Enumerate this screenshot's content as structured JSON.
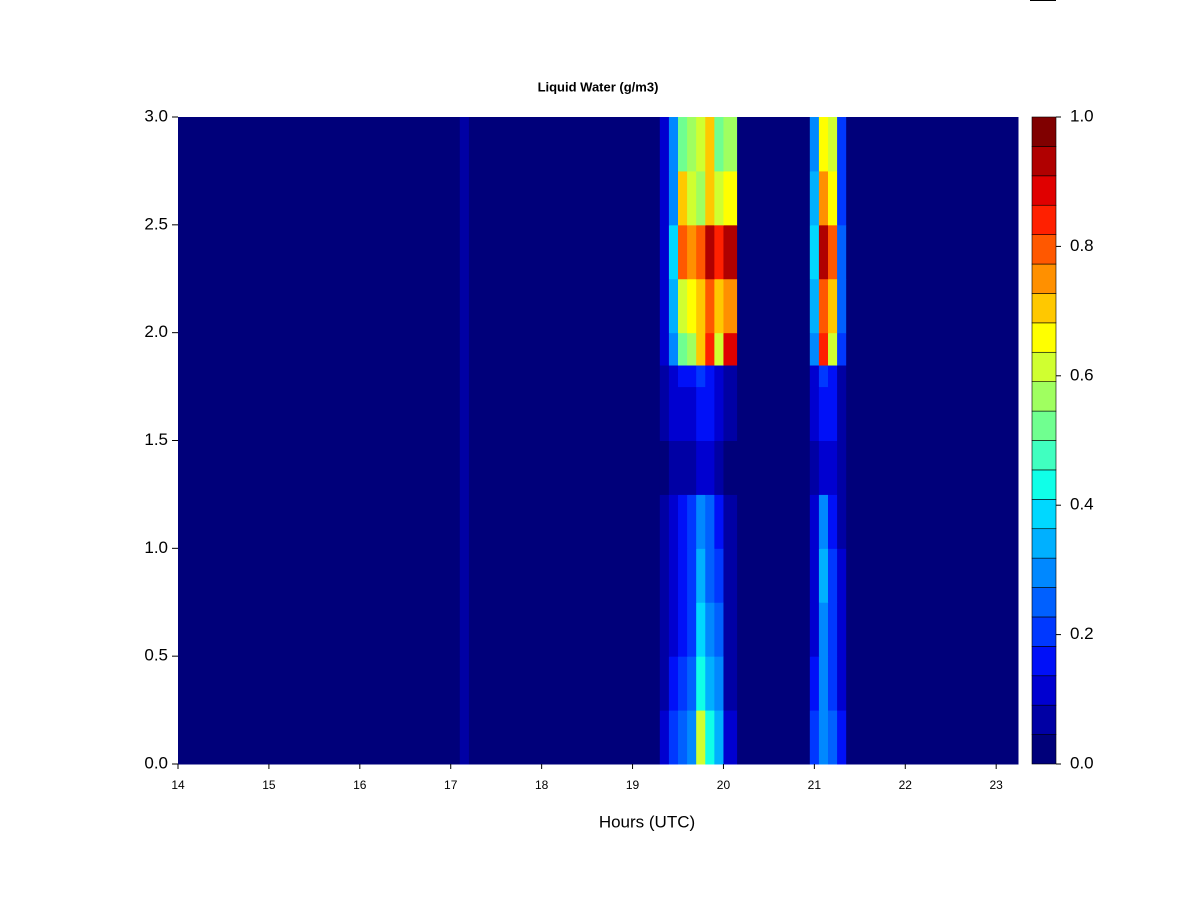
{
  "chart_data": {
    "type": "heatmap",
    "title": "Liquid Water (g/m3)",
    "x_label": "Hours (UTC)",
    "xlim": [
      14,
      23.24
    ],
    "ylim": [
      0,
      3
    ],
    "xticks": [
      14,
      15,
      16,
      17,
      18,
      19,
      20,
      21,
      22,
      23
    ],
    "yticks": [
      {
        "value": 0,
        "label": "0.0"
      },
      {
        "value": 0.5,
        "label": "0.5"
      },
      {
        "value": 1,
        "label": "1.0"
      },
      {
        "value": 1.5,
        "label": "1.5"
      },
      {
        "value": 2,
        "label": "2.0"
      },
      {
        "value": 2.5,
        "label": "2.5"
      },
      {
        "value": 3,
        "label": "3.0"
      }
    ],
    "x_bins": [
      14,
      17.1,
      17.2,
      19.3,
      19.4,
      19.5,
      19.6,
      19.7,
      19.8,
      19.9,
      20.0,
      20.15,
      20.95,
      21.05,
      21.15,
      21.25,
      21.35,
      23.24
    ],
    "y_bins": [
      0,
      0.25,
      0.5,
      0.75,
      1.0,
      1.25,
      1.5,
      1.75,
      1.85,
      2.0,
      2.25,
      2.5,
      2.75,
      3.0
    ],
    "z": [
      [
        0.02,
        0.08,
        0.02,
        0.1,
        0.2,
        0.25,
        0.3,
        0.6,
        0.45,
        0.35,
        0.1,
        0.02,
        0.2,
        0.3,
        0.25,
        0.15,
        0.02
      ],
      [
        0.02,
        0.08,
        0.02,
        0.08,
        0.15,
        0.2,
        0.25,
        0.45,
        0.35,
        0.3,
        0.08,
        0.02,
        0.15,
        0.3,
        0.2,
        0.12,
        0.02
      ],
      [
        0.02,
        0.07,
        0.02,
        0.06,
        0.12,
        0.15,
        0.2,
        0.4,
        0.3,
        0.25,
        0.06,
        0.02,
        0.12,
        0.3,
        0.2,
        0.1,
        0.02
      ],
      [
        0.02,
        0.07,
        0.02,
        0.06,
        0.1,
        0.15,
        0.2,
        0.35,
        0.25,
        0.2,
        0.06,
        0.02,
        0.1,
        0.35,
        0.2,
        0.1,
        0.02
      ],
      [
        0.02,
        0.07,
        0.02,
        0.05,
        0.1,
        0.15,
        0.2,
        0.3,
        0.25,
        0.15,
        0.05,
        0.02,
        0.1,
        0.3,
        0.15,
        0.08,
        0.02
      ],
      [
        0.02,
        0.06,
        0.02,
        0.04,
        0.08,
        0.08,
        0.06,
        0.1,
        0.1,
        0.08,
        0.04,
        0.02,
        0.08,
        0.1,
        0.1,
        0.06,
        0.02
      ],
      [
        0.02,
        0.06,
        0.02,
        0.05,
        0.1,
        0.12,
        0.12,
        0.15,
        0.15,
        0.12,
        0.05,
        0.02,
        0.1,
        0.15,
        0.15,
        0.08,
        0.02
      ],
      [
        0.02,
        0.06,
        0.02,
        0.06,
        0.12,
        0.15,
        0.15,
        0.2,
        0.15,
        0.12,
        0.05,
        0.02,
        0.12,
        0.2,
        0.15,
        0.08,
        0.02
      ],
      [
        0.02,
        0.05,
        0.02,
        0.1,
        0.3,
        0.5,
        0.55,
        0.7,
        0.85,
        0.6,
        0.9,
        0.02,
        0.3,
        0.85,
        0.6,
        0.2,
        0.02
      ],
      [
        0.02,
        0.05,
        0.02,
        0.12,
        0.35,
        0.6,
        0.65,
        0.7,
        0.8,
        0.7,
        0.75,
        0.02,
        0.35,
        0.8,
        0.7,
        0.25,
        0.02
      ],
      [
        0.02,
        0.05,
        0.02,
        0.12,
        0.4,
        0.8,
        0.75,
        0.8,
        0.95,
        0.85,
        0.95,
        0.02,
        0.4,
        0.95,
        0.8,
        0.25,
        0.02
      ],
      [
        0.02,
        0.05,
        0.02,
        0.1,
        0.3,
        0.7,
        0.6,
        0.55,
        0.7,
        0.6,
        0.65,
        0.02,
        0.35,
        0.75,
        0.65,
        0.2,
        0.02
      ],
      [
        0.02,
        0.05,
        0.02,
        0.1,
        0.3,
        0.5,
        0.55,
        0.6,
        0.7,
        0.5,
        0.55,
        0.02,
        0.3,
        0.65,
        0.6,
        0.2,
        0.02
      ]
    ],
    "clim": [
      0,
      1
    ],
    "colors": [
      "#00007a",
      "#0000a4",
      "#0000d0",
      "#0010f8",
      "#0038ff",
      "#0060ff",
      "#0088ff",
      "#00b0ff",
      "#00d8ff",
      "#10ffe8",
      "#40ffc0",
      "#70ff90",
      "#a0ff60",
      "#d0ff30",
      "#ffff00",
      "#ffc800",
      "#ff9000",
      "#ff5800",
      "#ff2000",
      "#e00000",
      "#b00000",
      "#800000"
    ],
    "colorbar_ticks": [
      {
        "value": 0,
        "label": "0.0"
      },
      {
        "value": 0.2,
        "label": "0.2"
      },
      {
        "value": 0.4,
        "label": "0.4"
      },
      {
        "value": 0.6,
        "label": "0.6"
      },
      {
        "value": 0.8,
        "label": "0.8"
      },
      {
        "value": 1,
        "label": "1.0"
      }
    ]
  }
}
